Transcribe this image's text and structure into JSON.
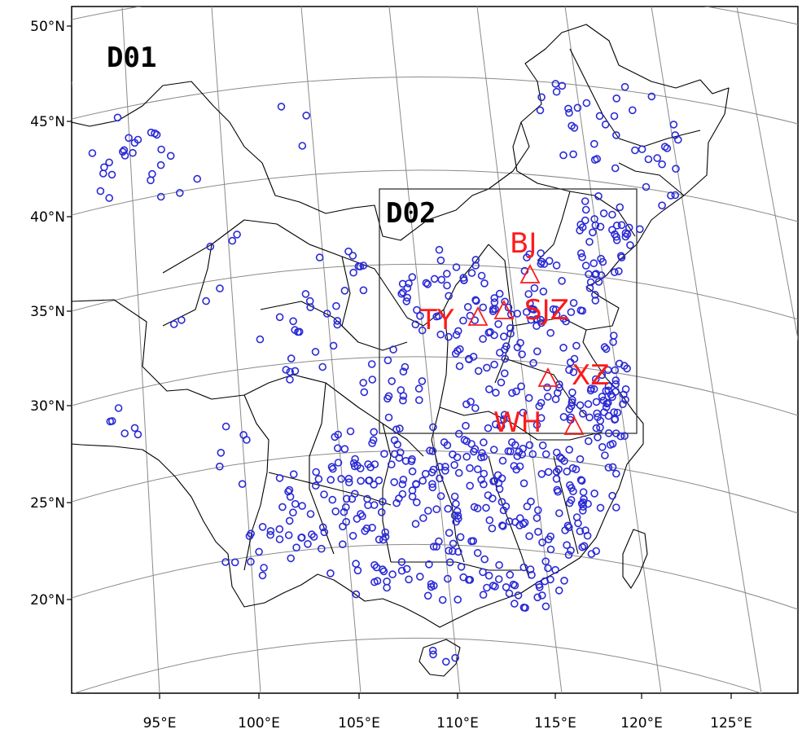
{
  "map": {
    "domains": [
      {
        "id": "d01",
        "label": "D01"
      },
      {
        "id": "d02",
        "label": "D02"
      }
    ],
    "lat_labels": [
      "50°N",
      "45°N",
      "40°N",
      "35°N",
      "30°N",
      "25°N",
      "20°N"
    ],
    "lon_labels": [
      "95°E",
      "100°E",
      "105°E",
      "110°E",
      "115°E",
      "120°E",
      "125°E"
    ],
    "cities": [
      {
        "id": "bj",
        "label": "BJ"
      },
      {
        "id": "ty",
        "label": "TY"
      },
      {
        "id": "sjz",
        "label": "SJZ"
      },
      {
        "id": "xz",
        "label": "XZ"
      },
      {
        "id": "wh",
        "label": "WH"
      }
    ],
    "colors": {
      "station_marker": "#2a2ad6",
      "city_marker": "#ff1a1a",
      "boundary": "#000000",
      "graticule": "#8a8a8a"
    },
    "station_count_description": "blue circles mark observation stations"
  }
}
